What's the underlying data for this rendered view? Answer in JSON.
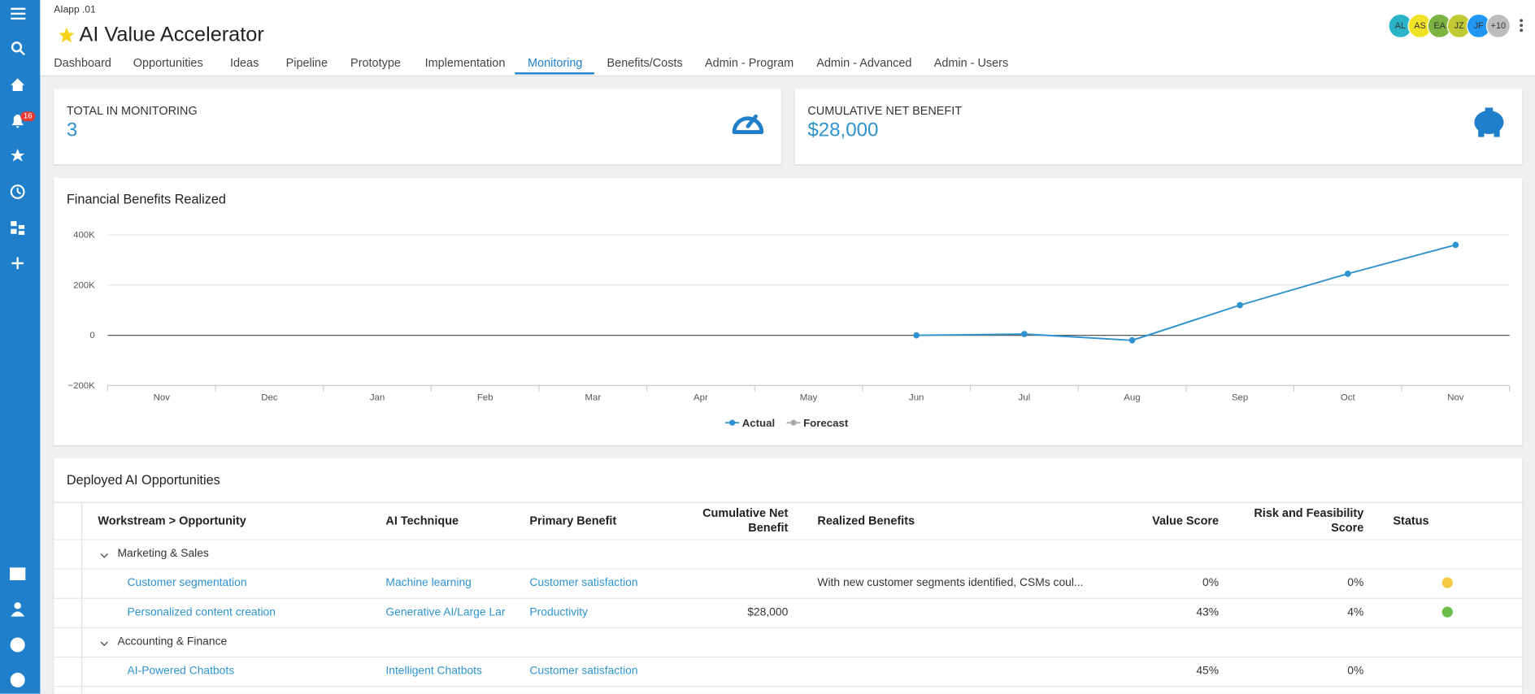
{
  "header": {
    "app_label": "AIapp .01",
    "title": "AI Value Accelerator",
    "notification_count": "16",
    "avatars": [
      {
        "initials": "AL",
        "color": "#2bb3c7"
      },
      {
        "initials": "AS",
        "color": "#f2e227"
      },
      {
        "initials": "EA",
        "color": "#7cb342"
      },
      {
        "initials": "JZ",
        "color": "#c0ca33"
      },
      {
        "initials": "JF",
        "color": "#2196f3"
      },
      {
        "initials": "+10",
        "color": "#bdbdbd"
      }
    ],
    "tabs": [
      "Dashboard",
      "Opportunities",
      "Ideas",
      "Pipeline",
      "Prototype",
      "Implementation",
      "Monitoring",
      "Benefits/Costs",
      "Admin - Program",
      "Admin - Advanced",
      "Admin - Users"
    ],
    "active_tab": 6
  },
  "cards": [
    {
      "label": "TOTAL IN MONITORING",
      "value": "3"
    },
    {
      "label": "CUMULATIVE NET BENEFIT",
      "value": "$28,000"
    }
  ],
  "chart_data": {
    "type": "line",
    "title": "Financial Benefits Realized",
    "categories": [
      "Nov",
      "Dec",
      "Jan",
      "Feb",
      "Mar",
      "Apr",
      "May",
      "Jun",
      "Jul",
      "Aug",
      "Sep",
      "Oct",
      "Nov"
    ],
    "series": [
      {
        "name": "Actual",
        "color": "#2e93cf",
        "values": [
          null,
          null,
          null,
          null,
          null,
          null,
          null,
          0,
          5000,
          -20000,
          120000,
          245000,
          360000
        ]
      },
      {
        "name": "Forecast",
        "color": "#aaaaaa",
        "values": [
          null,
          null,
          null,
          null,
          null,
          null,
          null,
          null,
          null,
          null,
          null,
          null,
          null
        ]
      }
    ],
    "ylim": [
      -200000,
      400000
    ],
    "yticks": [
      {
        "value": -200000,
        "label": "−200K"
      },
      0,
      {
        "value": 200000,
        "label": "200K"
      },
      {
        "value": 400000,
        "label": "400K"
      }
    ],
    "grid": true,
    "legend": "bottom"
  },
  "table": {
    "title": "Deployed AI Opportunities",
    "columns": [
      "Workstream > Opportunity",
      "AI Technique",
      "Primary Benefit",
      "Cumulative Net Benefit",
      "Realized Benefits",
      "Value Score",
      "Risk and Feasibility Score",
      "Status"
    ],
    "groups": [
      {
        "name": "Marketing & Sales",
        "rows": [
          {
            "cells": [
              "Customer segmentation",
              "Machine learning",
              "Customer satisfaction",
              null,
              "With new customer segments identified, CSMs coul...",
              "0%",
              "0%"
            ],
            "status": "#f5c842"
          },
          {
            "cells": [
              "Personalized content creation",
              "Generative AI/Large Lar",
              "Productivity",
              "$28,000",
              null,
              "43%",
              "4%"
            ],
            "status": "#6abf4b"
          }
        ]
      },
      {
        "name": "Accounting & Finance",
        "rows": [
          {
            "cells": [
              "AI-Powered Chatbots",
              "Intelligent Chatbots",
              "Customer satisfaction",
              null,
              null,
              "45%",
              "0%"
            ],
            "status": null
          }
        ]
      }
    ]
  }
}
